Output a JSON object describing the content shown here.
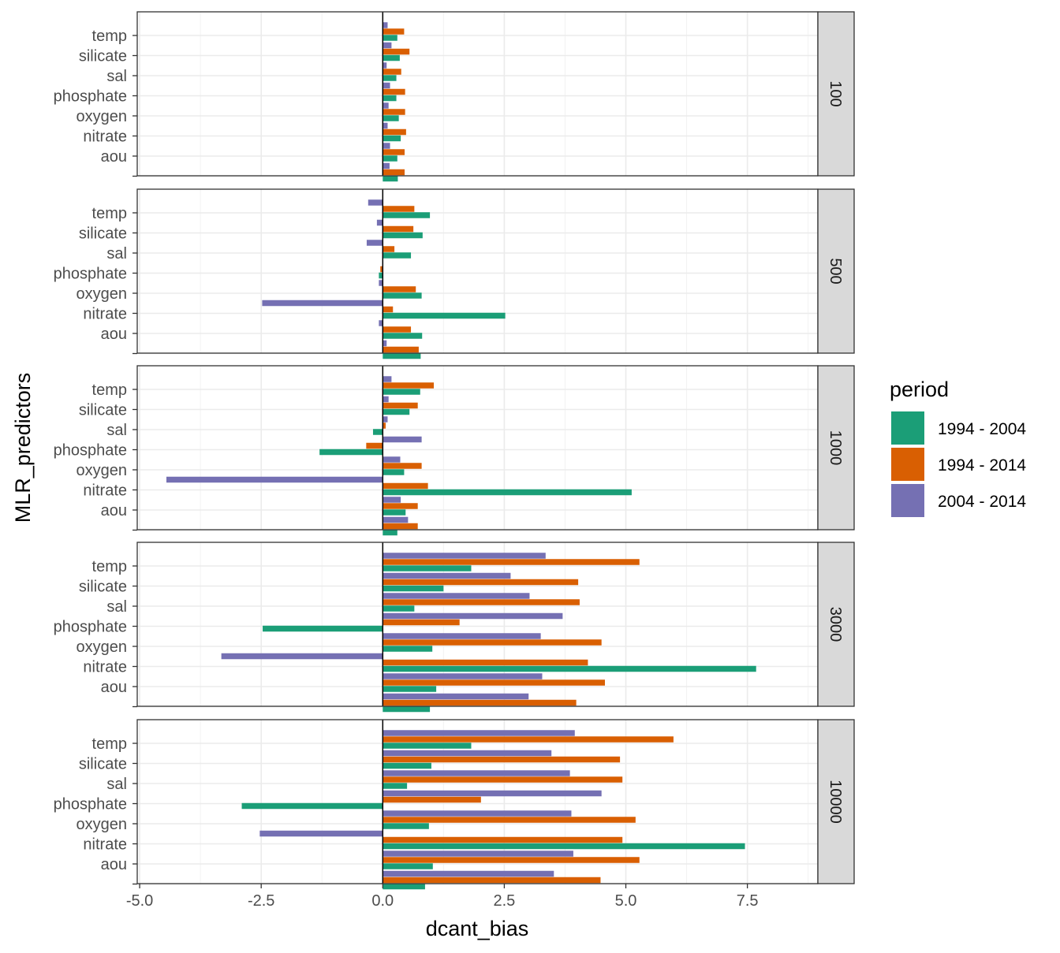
{
  "chart_data": {
    "type": "bar",
    "orientation": "horizontal",
    "xlabel": "dcant_bias",
    "ylabel": "MLR_predictors",
    "xlim": [
      -5.05,
      8.95
    ],
    "x_ticks": [
      -5.0,
      -2.5,
      0.0,
      2.5,
      5.0,
      7.5
    ],
    "x_tick_labels": [
      "-5.0",
      "-2.5",
      "0.0",
      "2.5",
      "5.0",
      "7.5"
    ],
    "vline_x": 0,
    "grid": true,
    "categories": [
      "temp",
      "silicate",
      "sal",
      "phosphate",
      "oxygen",
      "nitrate",
      "aou",
      ""
    ],
    "legend": {
      "title": "period",
      "position": "right",
      "items": [
        {
          "label": "1994 - 2004",
          "color": "#1B9E77"
        },
        {
          "label": "1994 - 2014",
          "color": "#D95F02"
        },
        {
          "label": "2004 - 2014",
          "color": "#7570B3"
        }
      ]
    },
    "facets": [
      {
        "label": "100",
        "series": [
          {
            "name": "1994 - 2004",
            "values": [
              0.3,
              0.35,
              0.28,
              0.28,
              0.33,
              0.37,
              0.3,
              0.31
            ]
          },
          {
            "name": "1994 - 2014",
            "values": [
              0.44,
              0.55,
              0.38,
              0.46,
              0.46,
              0.48,
              0.45,
              0.45
            ]
          },
          {
            "name": "2004 - 2014",
            "values": [
              0.1,
              0.18,
              0.08,
              0.15,
              0.12,
              0.1,
              0.15,
              0.14
            ]
          }
        ]
      },
      {
        "label": "500",
        "series": [
          {
            "name": "1994 - 2004",
            "values": [
              0.97,
              0.82,
              0.58,
              -0.08,
              0.8,
              2.52,
              0.81,
              0.78
            ]
          },
          {
            "name": "1994 - 2014",
            "values": [
              0.65,
              0.63,
              0.24,
              -0.05,
              0.68,
              0.21,
              0.58,
              0.74
            ]
          },
          {
            "name": "2004 - 2014",
            "values": [
              -0.3,
              -0.12,
              -0.33,
              0.0,
              -0.08,
              -2.48,
              -0.08,
              0.08
            ]
          }
        ]
      },
      {
        "label": "1000",
        "series": [
          {
            "name": "1994 - 2004",
            "values": [
              0.77,
              0.55,
              -0.2,
              -1.3,
              0.44,
              5.12,
              0.47,
              0.3
            ]
          },
          {
            "name": "1994 - 2014",
            "values": [
              1.05,
              0.72,
              0.06,
              -0.34,
              0.8,
              0.93,
              0.72,
              0.72
            ]
          },
          {
            "name": "2004 - 2014",
            "values": [
              0.18,
              0.12,
              0.1,
              0.8,
              0.36,
              -4.45,
              0.37,
              0.52
            ]
          }
        ]
      },
      {
        "label": "3000",
        "series": [
          {
            "name": "1994 - 2004",
            "values": [
              1.82,
              1.25,
              0.65,
              -2.47,
              1.02,
              7.68,
              1.1,
              0.97
            ]
          },
          {
            "name": "1994 - 2014",
            "values": [
              5.28,
              4.02,
              4.05,
              1.58,
              4.5,
              4.22,
              4.57,
              3.98
            ]
          },
          {
            "name": "2004 - 2014",
            "values": [
              3.35,
              2.63,
              3.02,
              3.7,
              3.25,
              -3.32,
              3.28,
              3.0
            ]
          }
        ]
      },
      {
        "label": "10000",
        "series": [
          {
            "name": "1994 - 2004",
            "values": [
              1.82,
              1.0,
              0.5,
              -2.9,
              0.95,
              7.45,
              1.03,
              0.87
            ]
          },
          {
            "name": "1994 - 2014",
            "values": [
              5.98,
              4.88,
              4.93,
              2.02,
              5.2,
              4.93,
              5.28,
              4.48
            ]
          },
          {
            "name": "2004 - 2014",
            "values": [
              3.95,
              3.47,
              3.85,
              4.5,
              3.88,
              -2.53,
              3.92,
              3.52
            ]
          }
        ]
      }
    ]
  }
}
